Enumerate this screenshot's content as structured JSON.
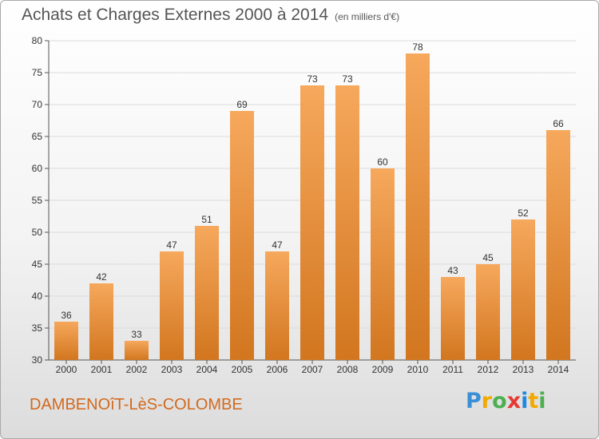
{
  "title": "Achats et Charges Externes 2000 à 2014",
  "subtitle": "(en milliers d'€)",
  "footer": {
    "commune": "DAMBENOîT-LèS-COLOMBE"
  },
  "logo": {
    "letters": [
      "P",
      "r",
      "o",
      "x",
      "i",
      "t",
      "i"
    ],
    "colors": [
      "#3a8fd6",
      "#f2a900",
      "#4caf50",
      "#e53935",
      "#1e88e5",
      "#f2a900",
      "#4caf50"
    ]
  },
  "colors": {
    "bar_top": "#f6a85c",
    "bar_bottom": "#d2761f"
  },
  "chart_data": {
    "type": "bar",
    "categories": [
      "2000",
      "2001",
      "2002",
      "2003",
      "2004",
      "2005",
      "2006",
      "2007",
      "2008",
      "2009",
      "2010",
      "2011",
      "2012",
      "2013",
      "2014"
    ],
    "values": [
      36,
      42,
      33,
      47,
      51,
      69,
      47,
      73,
      73,
      60,
      78,
      43,
      45,
      52,
      66
    ],
    "ylim": [
      30,
      80
    ],
    "yticks": [
      30,
      35,
      40,
      45,
      50,
      55,
      60,
      65,
      70,
      75,
      80
    ],
    "grid": true,
    "xlabel": "",
    "ylabel": ""
  }
}
